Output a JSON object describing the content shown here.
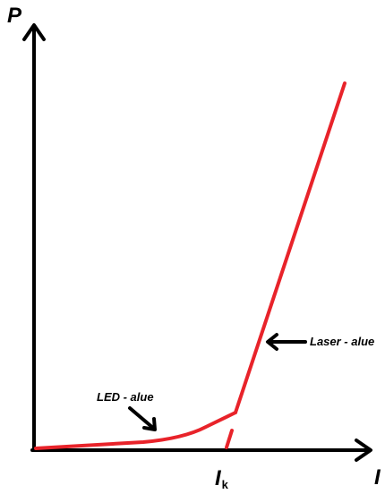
{
  "axes": {
    "y_label": "P",
    "x_label": "I"
  },
  "threshold": {
    "symbol": "I",
    "subscript": "k"
  },
  "annotations": {
    "laser": "Laser - alue",
    "led": "LED - alue"
  },
  "colors": {
    "axis": "#000000",
    "curve": "#e8232a",
    "arrow": "#000000",
    "background": "#ffffff"
  }
}
